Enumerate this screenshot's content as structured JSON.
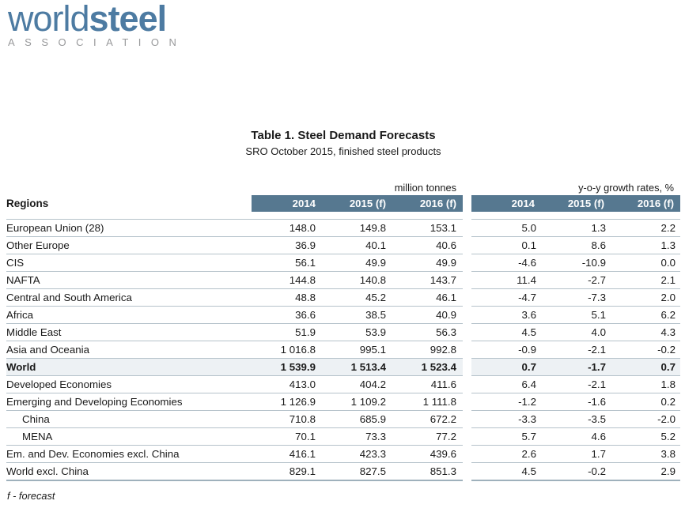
{
  "logo": {
    "word_regular": "world",
    "word_bold": "steel",
    "subtext": "ASSOCIATION"
  },
  "title": "Table 1. Steel Demand Forecasts",
  "subtitle": "SRO October 2015, finished steel products",
  "table": {
    "region_col_header": "Regions",
    "group_labels": {
      "tonnes": "million tonnes",
      "growth": "y-o-y growth rates, %"
    },
    "year_headers": [
      "2014",
      "2015 (f)",
      "2016 (f)"
    ],
    "rows": [
      {
        "region": "European Union (28)",
        "mt": [
          "148.0",
          "149.8",
          "153.1"
        ],
        "growth": [
          "5.0",
          "1.3",
          "2.2"
        ],
        "highlight": false,
        "indent": false
      },
      {
        "region": "Other Europe",
        "mt": [
          "36.9",
          "40.1",
          "40.6"
        ],
        "growth": [
          "0.1",
          "8.6",
          "1.3"
        ],
        "highlight": false,
        "indent": false
      },
      {
        "region": "CIS",
        "mt": [
          "56.1",
          "49.9",
          "49.9"
        ],
        "growth": [
          "-4.6",
          "-10.9",
          "0.0"
        ],
        "highlight": false,
        "indent": false
      },
      {
        "region": "NAFTA",
        "mt": [
          "144.8",
          "140.8",
          "143.7"
        ],
        "growth": [
          "11.4",
          "-2.7",
          "2.1"
        ],
        "highlight": false,
        "indent": false
      },
      {
        "region": "Central and South America",
        "mt": [
          "48.8",
          "45.2",
          "46.1"
        ],
        "growth": [
          "-4.7",
          "-7.3",
          "2.0"
        ],
        "highlight": false,
        "indent": false
      },
      {
        "region": "Africa",
        "mt": [
          "36.6",
          "38.5",
          "40.9"
        ],
        "growth": [
          "3.6",
          "5.1",
          "6.2"
        ],
        "highlight": false,
        "indent": false
      },
      {
        "region": "Middle East",
        "mt": [
          "51.9",
          "53.9",
          "56.3"
        ],
        "growth": [
          "4.5",
          "4.0",
          "4.3"
        ],
        "highlight": false,
        "indent": false
      },
      {
        "region": "Asia and Oceania",
        "mt": [
          "1 016.8",
          "995.1",
          "992.8"
        ],
        "growth": [
          "-0.9",
          "-2.1",
          "-0.2"
        ],
        "highlight": false,
        "indent": false
      },
      {
        "region": "World",
        "mt": [
          "1 539.9",
          "1 513.4",
          "1 523.4"
        ],
        "growth": [
          "0.7",
          "-1.7",
          "0.7"
        ],
        "highlight": true,
        "indent": false
      },
      {
        "region": "Developed Economies",
        "mt": [
          "413.0",
          "404.2",
          "411.6"
        ],
        "growth": [
          "6.4",
          "-2.1",
          "1.8"
        ],
        "highlight": false,
        "indent": false
      },
      {
        "region": "Emerging and Developing Economies",
        "mt": [
          "1 126.9",
          "1 109.2",
          "1 111.8"
        ],
        "growth": [
          "-1.2",
          "-1.6",
          "0.2"
        ],
        "highlight": false,
        "indent": false
      },
      {
        "region": "China",
        "mt": [
          "710.8",
          "685.9",
          "672.2"
        ],
        "growth": [
          "-3.3",
          "-3.5",
          "-2.0"
        ],
        "highlight": false,
        "indent": true
      },
      {
        "region": "MENA",
        "mt": [
          "70.1",
          "73.3",
          "77.2"
        ],
        "growth": [
          "5.7",
          "4.6",
          "5.2"
        ],
        "highlight": false,
        "indent": true
      },
      {
        "region": "Em. and Dev. Economies excl. China",
        "mt": [
          "416.1",
          "423.3",
          "439.6"
        ],
        "growth": [
          "2.6",
          "1.7",
          "3.8"
        ],
        "highlight": false,
        "indent": false
      },
      {
        "region": "World excl. China",
        "mt": [
          "829.1",
          "827.5",
          "851.3"
        ],
        "growth": [
          "4.5",
          "-0.2",
          "2.9"
        ],
        "highlight": false,
        "indent": false
      }
    ]
  },
  "footnote": "f - forecast",
  "colors": {
    "header_bg": "#567890",
    "logo_blue": "#4d7ba2",
    "logo_gray": "#98999b",
    "highlight_row_bg": "#edf1f4",
    "separator": "#b5c2ca",
    "table_end_border": "#9fb1bc"
  }
}
